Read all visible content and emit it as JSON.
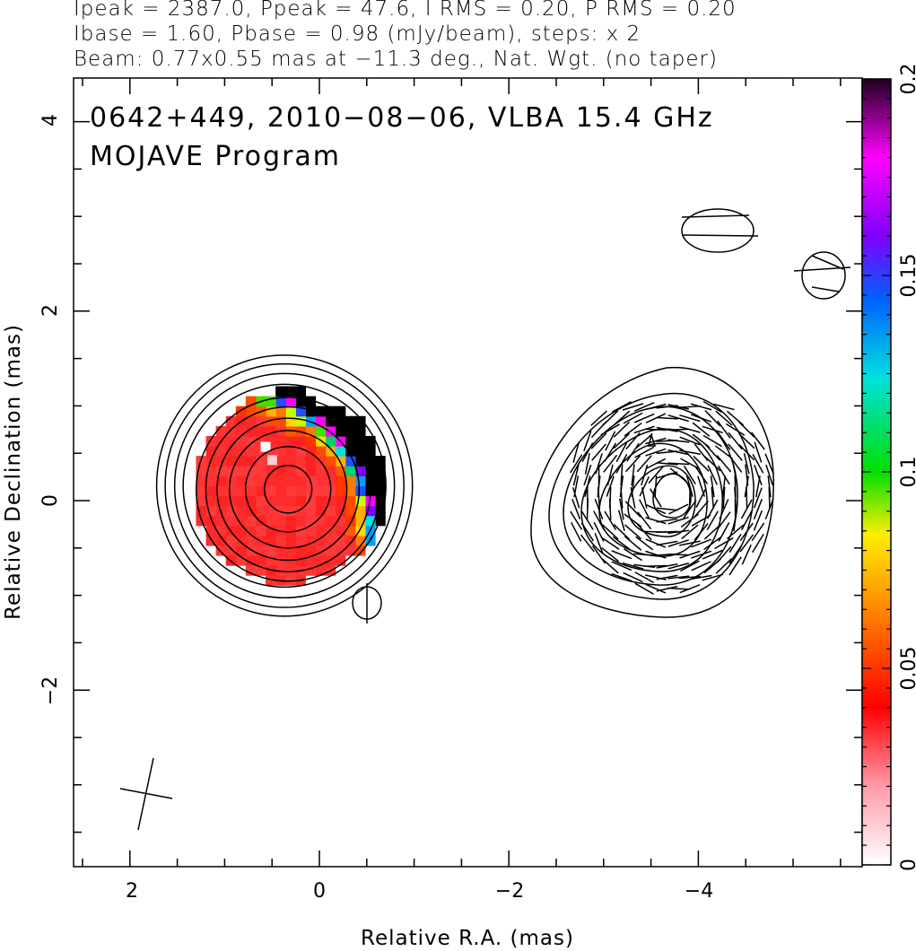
{
  "header": {
    "line1": "Ipeak = 2387.0, Ppeak = 47.6, I RMS = 0.20, P RMS = 0.20",
    "line2": "Ibase = 1.60, Pbase = 0.98 (mJy/beam), steps: x 2",
    "line3": "Beam: 0.77x0.55 mas at −11.3 deg., Nat. Wgt. (no taper)"
  },
  "chart_data": {
    "type": "heatmap",
    "title_line1": "0642+449, 2010−08−06, VLBA 15.4 GHz",
    "title_line2": "MOJAVE Program",
    "xlabel": "Relative R.A. (mas)",
    "ylabel": "Relative Declination (mas)",
    "xlim": [
      2.6,
      -5.7
    ],
    "ylim": [
      -3.85,
      4.45
    ],
    "x_ticks": [
      2,
      0,
      -2,
      -4
    ],
    "x_tick_labels": [
      "2",
      "0",
      "−2",
      "−4"
    ],
    "y_ticks": [
      -2,
      0,
      2,
      4
    ],
    "y_tick_labels": [
      "−2",
      "0",
      "2",
      "4"
    ],
    "colorbar": {
      "range": [
        0,
        0.2
      ],
      "ticks": [
        0,
        0.05,
        0.1,
        0.15,
        0.2
      ],
      "tick_labels": [
        "0",
        "0.05",
        "0.1",
        "0.15",
        "0.2"
      ],
      "colors": [
        "#ffffff",
        "#ff9aa8",
        "#ff0000",
        "#ff6a00",
        "#ffee00",
        "#00e000",
        "#00e0e0",
        "#0060ff",
        "#8000ff",
        "#ff00ff",
        "#200020"
      ]
    },
    "beam": {
      "major_mas": 0.77,
      "minor_mas": 0.55,
      "pa_deg": -11.3
    },
    "core_panel": {
      "center": [
        0.33,
        0.12
      ],
      "contour_radii_mas": [
        0.25,
        0.45,
        0.62,
        0.75,
        0.87,
        0.97,
        1.07,
        1.16,
        1.26,
        1.35
      ]
    },
    "pol_panel": {
      "center": [
        -3.7,
        0.1
      ]
    }
  }
}
